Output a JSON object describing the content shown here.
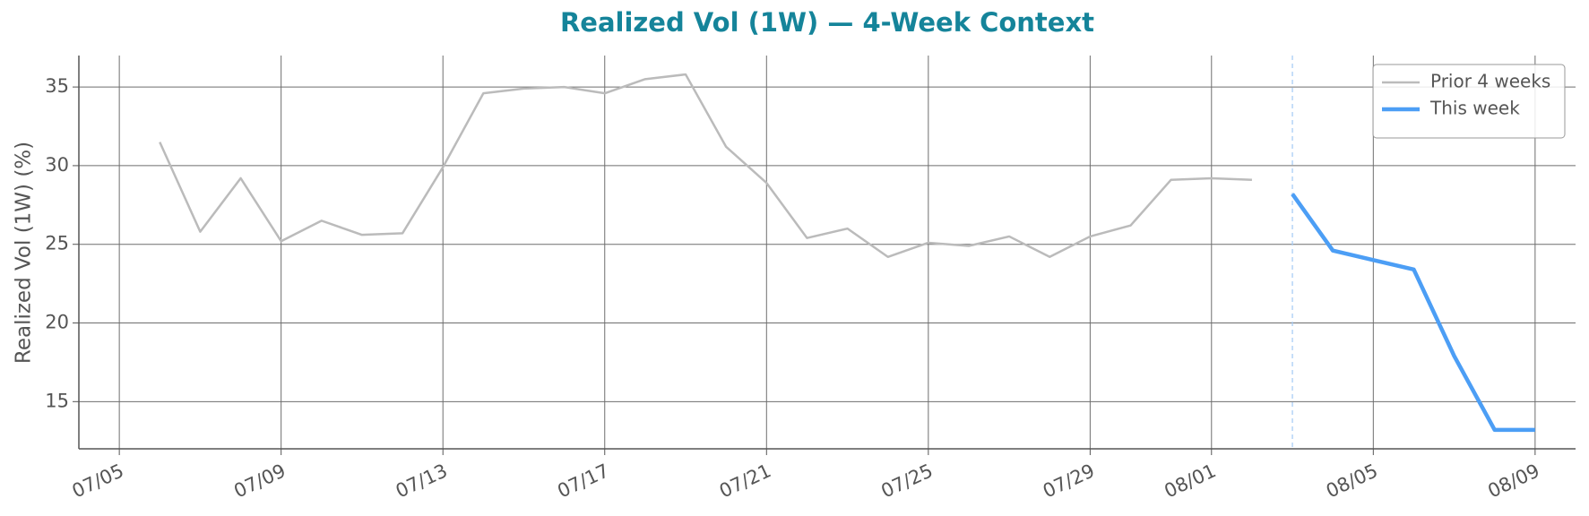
{
  "chart_data": {
    "type": "line",
    "title": "Realized Vol (1W) — 4-Week Context",
    "y_label": "Realized Vol (1W) (%)",
    "x": [
      "07/06",
      "07/07",
      "07/08",
      "07/09",
      "07/10",
      "07/11",
      "07/12",
      "07/13",
      "07/14",
      "07/15",
      "07/16",
      "07/17",
      "07/18",
      "07/19",
      "07/20",
      "07/21",
      "07/22",
      "07/23",
      "07/24",
      "07/25",
      "07/26",
      "07/27",
      "07/28",
      "07/29",
      "07/30",
      "07/31",
      "08/01",
      "08/02",
      "08/03",
      "08/04",
      "08/05",
      "08/06",
      "08/07",
      "08/08",
      "08/09"
    ],
    "series": [
      {
        "name": "Prior 4 weeks",
        "color": "#bbbbbb",
        "width": 2.5,
        "values": [
          31.5,
          25.8,
          29.2,
          25.2,
          26.5,
          25.6,
          25.7,
          29.9,
          34.6,
          34.9,
          35.0,
          34.6,
          35.5,
          35.8,
          31.2,
          28.9,
          25.4,
          26.0,
          24.2,
          25.1,
          24.9,
          25.5,
          24.2,
          25.5,
          26.2,
          29.1,
          29.2,
          29.1,
          null,
          null,
          null,
          null,
          null,
          null,
          null
        ]
      },
      {
        "name": "This week",
        "color": "#4c9ef5",
        "width": 4.5,
        "values": [
          null,
          null,
          null,
          null,
          null,
          null,
          null,
          null,
          null,
          null,
          null,
          null,
          null,
          null,
          null,
          null,
          null,
          null,
          null,
          null,
          null,
          null,
          null,
          null,
          null,
          null,
          null,
          null,
          28.2,
          24.6,
          24.0,
          23.4,
          17.9,
          13.2,
          13.2
        ]
      }
    ],
    "vline_x": "08/03",
    "xlim": [
      "07/04",
      "08/10"
    ],
    "xticks": [
      "07/05",
      "07/09",
      "07/13",
      "07/17",
      "07/21",
      "07/25",
      "07/29",
      "08/01",
      "08/05",
      "08/09"
    ],
    "ylim": [
      12,
      37
    ],
    "yticks": [
      15,
      20,
      25,
      30,
      35
    ],
    "grid": true,
    "legend": "upper right"
  }
}
